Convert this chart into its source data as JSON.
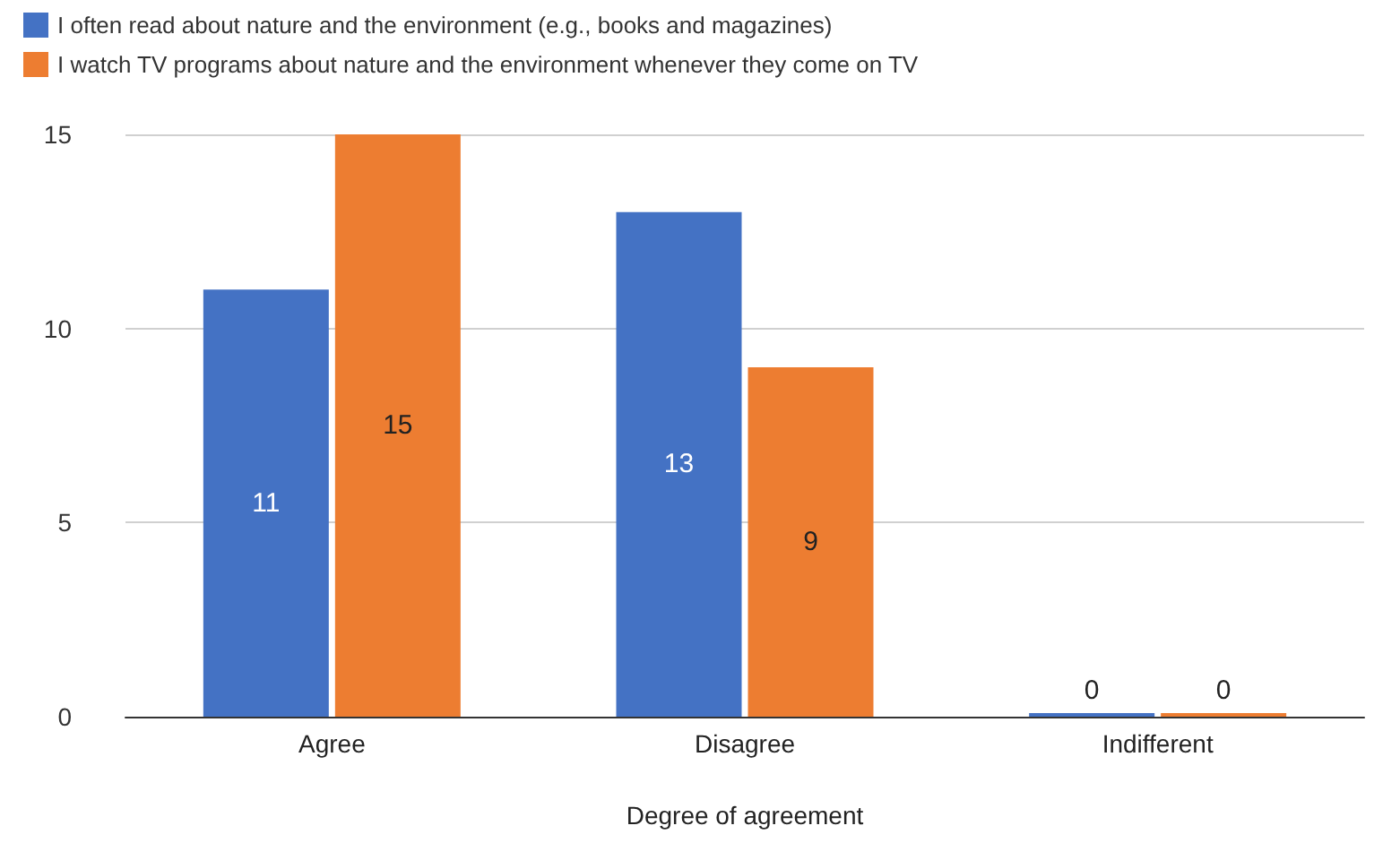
{
  "chart_data": {
    "type": "bar",
    "xlabel": "Degree of agreement",
    "categories": [
      "Agree",
      "Disagree",
      "Indifferent"
    ],
    "series": [
      {
        "name": "I often read about nature and the environment (e.g., books and magazines)",
        "color": "#4472c4",
        "values": [
          11,
          13,
          0
        ]
      },
      {
        "name": "I watch TV programs about nature and the environment whenever they come on TV",
        "color": "#ed7d31",
        "values": [
          15,
          9,
          0
        ]
      }
    ],
    "ylim": [
      0,
      15
    ],
    "yticks": [
      0,
      5,
      10,
      15
    ],
    "grid": "y",
    "legend": "top left",
    "data_labels": true
  }
}
